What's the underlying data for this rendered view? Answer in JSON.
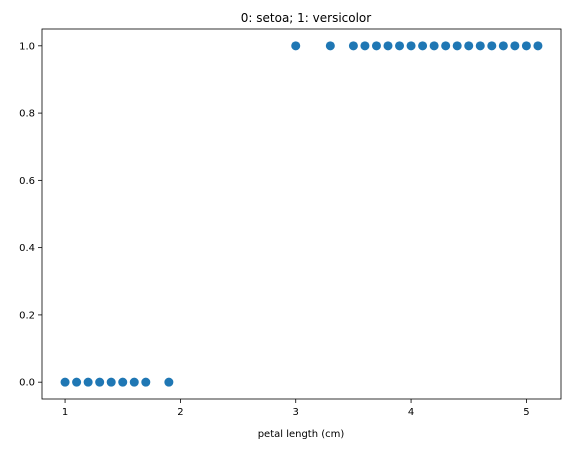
{
  "chart_data": {
    "type": "scatter",
    "title": "0: setoa; 1: versicolor",
    "xlabel": "petal length (cm)",
    "ylabel": "",
    "xlim": [
      0.8,
      5.3
    ],
    "ylim": [
      -0.05,
      1.05
    ],
    "xticks": [
      1,
      2,
      3,
      4,
      5
    ],
    "yticks": [
      0.0,
      0.2,
      0.4,
      0.6,
      0.8,
      1.0
    ],
    "xtick_labels": [
      "1",
      "2",
      "3",
      "4",
      "5"
    ],
    "ytick_labels": [
      "0.0",
      "0.2",
      "0.4",
      "0.6",
      "0.8",
      "1.0"
    ],
    "grid": false,
    "marker_color": "#1f77b4",
    "series": [
      {
        "points": [
          {
            "x": 1.0,
            "y": 0
          },
          {
            "x": 1.1,
            "y": 0
          },
          {
            "x": 1.2,
            "y": 0
          },
          {
            "x": 1.3,
            "y": 0
          },
          {
            "x": 1.4,
            "y": 0
          },
          {
            "x": 1.5,
            "y": 0
          },
          {
            "x": 1.6,
            "y": 0
          },
          {
            "x": 1.7,
            "y": 0
          },
          {
            "x": 1.9,
            "y": 0
          },
          {
            "x": 3.0,
            "y": 1
          },
          {
            "x": 3.3,
            "y": 1
          },
          {
            "x": 3.5,
            "y": 1
          },
          {
            "x": 3.6,
            "y": 1
          },
          {
            "x": 3.7,
            "y": 1
          },
          {
            "x": 3.8,
            "y": 1
          },
          {
            "x": 3.9,
            "y": 1
          },
          {
            "x": 4.0,
            "y": 1
          },
          {
            "x": 4.1,
            "y": 1
          },
          {
            "x": 4.2,
            "y": 1
          },
          {
            "x": 4.3,
            "y": 1
          },
          {
            "x": 4.4,
            "y": 1
          },
          {
            "x": 4.5,
            "y": 1
          },
          {
            "x": 4.6,
            "y": 1
          },
          {
            "x": 4.7,
            "y": 1
          },
          {
            "x": 4.8,
            "y": 1
          },
          {
            "x": 4.9,
            "y": 1
          },
          {
            "x": 5.0,
            "y": 1
          },
          {
            "x": 5.1,
            "y": 1
          }
        ]
      }
    ]
  }
}
